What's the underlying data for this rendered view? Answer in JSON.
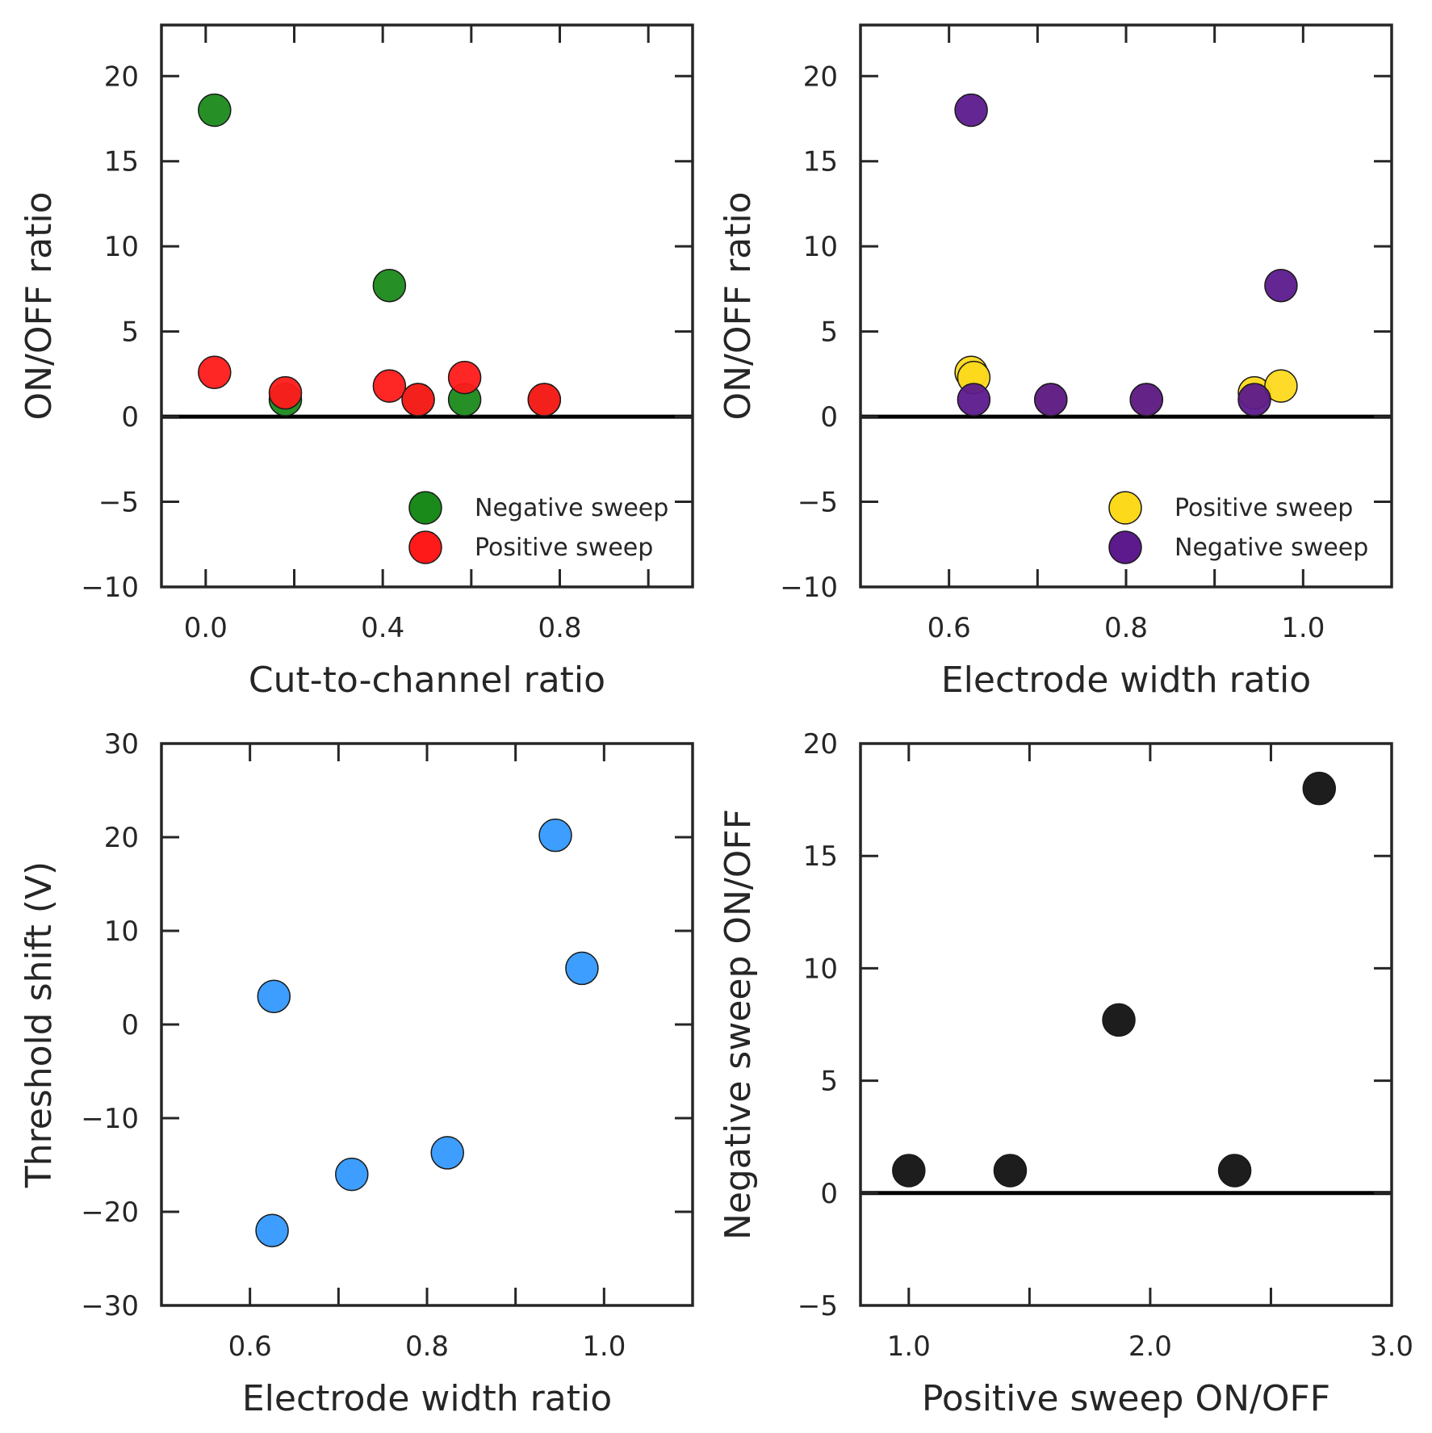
{
  "chart_data": [
    {
      "type": "scatter",
      "xlabel": "Cut-to-channel ratio",
      "ylabel": "ON/OFF ratio",
      "xlim": [
        -0.1,
        1.1
      ],
      "ylim": [
        -10,
        23
      ],
      "xticks": [
        0.0,
        0.2,
        0.4,
        0.6,
        0.8,
        1.0
      ],
      "xticklabels": [
        "0.0",
        "",
        "0.4",
        "",
        "0.8",
        ""
      ],
      "yticks": [
        -10,
        -5,
        0,
        5,
        10,
        15,
        20
      ],
      "yticklabels": [
        "−10",
        "−5",
        "0",
        "5",
        "10",
        "15",
        "20"
      ],
      "hline": 0,
      "grid": false,
      "legend_position": "lower-right",
      "series": [
        {
          "name": "Negative sweep",
          "color": "#1a8a1a",
          "points": [
            [
              0.02,
              18.0
            ],
            [
              0.18,
              1.0
            ],
            [
              0.415,
              7.7
            ],
            [
              0.48,
              1.0
            ],
            [
              0.585,
              1.0
            ],
            [
              0.765,
              1.0
            ]
          ]
        },
        {
          "name": "Positive sweep",
          "color": "#ff1a1a",
          "points": [
            [
              0.02,
              2.6
            ],
            [
              0.18,
              1.4
            ],
            [
              0.415,
              1.8
            ],
            [
              0.48,
              1.0
            ],
            [
              0.585,
              2.3
            ],
            [
              0.765,
              1.0
            ]
          ]
        }
      ]
    },
    {
      "type": "scatter",
      "xlabel": "Electrode width ratio",
      "ylabel": "ON/OFF ratio",
      "xlim": [
        0.5,
        1.1
      ],
      "ylim": [
        -10,
        23
      ],
      "xticks": [
        0.6,
        0.7,
        0.8,
        0.9,
        1.0
      ],
      "xticklabels": [
        "0.6",
        "",
        "0.8",
        "",
        "1.0"
      ],
      "yticks": [
        -10,
        -5,
        0,
        5,
        10,
        15,
        20
      ],
      "yticklabels": [
        "−10",
        "−5",
        "0",
        "5",
        "10",
        "15",
        "20"
      ],
      "hline": 0,
      "grid": false,
      "legend_position": "lower-right",
      "series": [
        {
          "name": "Positive sweep",
          "color": "#fdd91c",
          "points": [
            [
              0.625,
              2.6
            ],
            [
              0.628,
              2.3
            ],
            [
              0.715,
              1.0
            ],
            [
              0.823,
              1.0
            ],
            [
              0.945,
              1.4
            ],
            [
              0.975,
              1.8
            ]
          ]
        },
        {
          "name": "Negative sweep",
          "color": "#5c1a8c",
          "points": [
            [
              0.625,
              18.0
            ],
            [
              0.628,
              1.0
            ],
            [
              0.715,
              1.0
            ],
            [
              0.823,
              1.0
            ],
            [
              0.945,
              1.0
            ],
            [
              0.975,
              7.7
            ]
          ]
        }
      ]
    },
    {
      "type": "scatter",
      "xlabel": "Electrode width ratio",
      "ylabel": "Threshold shift (V)",
      "xlim": [
        0.5,
        1.1
      ],
      "ylim": [
        -30,
        30
      ],
      "xticks": [
        0.6,
        0.7,
        0.8,
        0.9,
        1.0
      ],
      "xticklabels": [
        "0.6",
        "",
        "0.8",
        "",
        "1.0"
      ],
      "yticks": [
        -30,
        -20,
        -10,
        0,
        10,
        20,
        30
      ],
      "yticklabels": [
        "−30",
        "−20",
        "−10",
        "0",
        "10",
        "20",
        "30"
      ],
      "grid": false,
      "series": [
        {
          "color": "#3399ff",
          "points": [
            [
              0.627,
              3.0
            ],
            [
              0.625,
              -22.0
            ],
            [
              0.715,
              -16.0
            ],
            [
              0.823,
              -13.7
            ],
            [
              0.945,
              20.2
            ],
            [
              0.975,
              6.0
            ]
          ]
        }
      ]
    },
    {
      "type": "scatter",
      "xlabel": "Positive sweep ON/OFF",
      "ylabel": "Negative sweep ON/OFF",
      "xlim": [
        0.8,
        3.0
      ],
      "ylim": [
        -5,
        20
      ],
      "xticks": [
        1.0,
        1.5,
        2.0,
        2.5,
        3.0
      ],
      "xticklabels": [
        "1.0",
        "",
        "2.0",
        "",
        "3.0"
      ],
      "yticks": [
        -5,
        0,
        5,
        10,
        15,
        20
      ],
      "yticklabels": [
        "−5",
        "0",
        "5",
        "10",
        "15",
        "20"
      ],
      "hline": 0,
      "grid": false,
      "series": [
        {
          "color": "#111111",
          "points": [
            [
              1.0,
              1.0
            ],
            [
              1.42,
              1.0
            ],
            [
              1.87,
              7.7
            ],
            [
              2.35,
              1.0
            ],
            [
              2.7,
              18.0
            ]
          ]
        }
      ]
    }
  ]
}
